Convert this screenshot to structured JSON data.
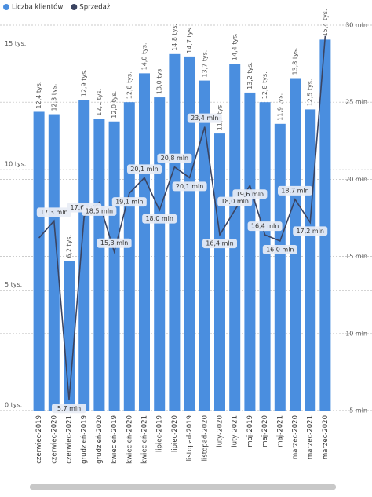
{
  "chart_data": {
    "type": "bar-line",
    "categories": [
      "czerwiec-2019",
      "czerwiec-2020",
      "czerwiec-2021",
      "grudzień-2019",
      "grudzień-2020",
      "kwiecień-2019",
      "kwiecień-2020",
      "kwiecień-2021",
      "lipiec-2019",
      "lipiec-2020",
      "listopad-2019",
      "listopad-2020",
      "luty-2020",
      "luty-2021",
      "maj-2019",
      "maj-2020",
      "maj-2021",
      "marzec-2020",
      "marzec-2021",
      "marzec-2020"
    ],
    "series": [
      {
        "name": "Liczba klientów",
        "color": "#4a8edf",
        "type": "bar",
        "values": [
          12.4,
          12.3,
          6.2,
          12.9,
          12.1,
          12.0,
          12.8,
          14.0,
          13.0,
          14.8,
          14.7,
          13.7,
          11.5,
          14.4,
          13.2,
          12.8,
          11.9,
          13.8,
          12.5,
          15.4
        ],
        "value_labels": [
          "12,4 tys.",
          "12,3 tys.",
          "6,2 tys.",
          "12,9 tys.",
          "12,1 tys.",
          "12,0 tys.",
          "12,8 tys.",
          "14,0 tys.",
          "13,0 tys.",
          "14,8 tys.",
          "14,7 tys.",
          "13,7 tys.",
          "11,5 tys.",
          "14,4 tys.",
          "13,2 tys.",
          "12,8 tys.",
          "11,9 tys.",
          "13,8 tys.",
          "12,5 tys.",
          "15,4 tys."
        ]
      },
      {
        "name": "Sprzedaż",
        "color": "#3b4461",
        "type": "line",
        "axis": "y2",
        "values": [
          16.2,
          17.3,
          5.7,
          17.6,
          18.5,
          15.3,
          19.1,
          20.1,
          18.0,
          20.8,
          20.1,
          23.4,
          16.4,
          18.0,
          19.6,
          16.4,
          16.0,
          18.7,
          17.2,
          29.3
        ],
        "value_labels": [
          null,
          "17,3 mln",
          "5,7 mln",
          "17,6 mln",
          "18,5 mln",
          "15,3 mln",
          "19,1 mln",
          "20,1 mln",
          "18,0 mln",
          "20,8 mln",
          "20,1 mln",
          "23,4 mln",
          "16,4 mln",
          "18,0 mln",
          "19,6 mln",
          "16,4 mln",
          "16,0 mln",
          "18,7 mln",
          "17,2 mln",
          null
        ]
      }
    ],
    "ylim": [
      0,
      16
    ],
    "yticks": [
      {
        "value": 0,
        "label": "0 tys."
      },
      {
        "value": 5,
        "label": "5 tys."
      },
      {
        "value": 10,
        "label": "10 tys."
      },
      {
        "value": 15,
        "label": "15 tys."
      }
    ],
    "y2lim": [
      5,
      30
    ],
    "y2ticks": [
      {
        "value": 5,
        "label": "5 mln"
      },
      {
        "value": 10,
        "label": "10 mln"
      },
      {
        "value": 15,
        "label": "15 mln"
      },
      {
        "value": 20,
        "label": "20 mln"
      },
      {
        "value": 25,
        "label": "25 mln"
      },
      {
        "value": 30,
        "label": "30 mln"
      }
    ],
    "grid": true,
    "legend": "top-left"
  }
}
